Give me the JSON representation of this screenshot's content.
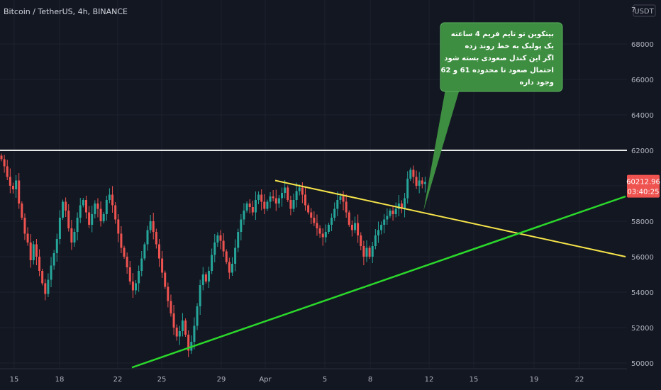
{
  "chart_data": {
    "type": "candlestick",
    "title": "Bitcoin / TetherUS, 4h, BINANCE",
    "currency_label": "USDT",
    "price_axis_top_partial": "7",
    "y_ticks": [
      50000,
      52000,
      54000,
      56000,
      58000,
      60000,
      62000,
      64000,
      66000,
      68000
    ],
    "y_tick_labels": [
      "50000",
      "52000",
      "54000",
      "56000",
      "58000",
      "60000",
      "62000",
      "64000",
      "66000",
      "68000"
    ],
    "ylim": [
      49700,
      71000
    ],
    "x_tick_labels": [
      "15",
      "18",
      "22",
      "25",
      "29",
      "Apr",
      "5",
      "8",
      "12",
      "15",
      "19",
      "22"
    ],
    "last_price_label": "60212.96",
    "countdown_label": "03:40:25",
    "price_colors": {
      "up": "#26a69a",
      "down": "#ef5350"
    },
    "resistance_line": {
      "price": 62000,
      "color": "#e8e8e8"
    },
    "descending_trendline": {
      "from_price": 60300,
      "to_price": 56000,
      "color": "#f5e44a"
    },
    "ascending_trendline": {
      "from_price": 49750,
      "to_price": 59400,
      "color": "#2bd82b"
    },
    "closes": [
      61500,
      61100,
      60500,
      60000,
      59800,
      60300,
      59000,
      58200,
      57300,
      56800,
      55800,
      56700,
      56000,
      55200,
      54500,
      53900,
      54700,
      55500,
      56200,
      57000,
      58200,
      59100,
      58600,
      57600,
      56800,
      57400,
      58200,
      58900,
      59200,
      58500,
      57800,
      58400,
      59000,
      58700,
      58000,
      58400,
      59200,
      59500,
      58900,
      58100,
      57300,
      56500,
      56000,
      55400,
      54600,
      54100,
      54500,
      55200,
      55900,
      56700,
      57500,
      58000,
      57400,
      56700,
      55900,
      55100,
      54300,
      53500,
      52800,
      52000,
      51500,
      51800,
      52400,
      51600,
      50700,
      51200,
      52100,
      53200,
      54400,
      55000,
      54600,
      55200,
      56100,
      56800,
      57200,
      56900,
      56300,
      55700,
      55100,
      55600,
      56500,
      57400,
      58100,
      58600,
      59000,
      58800,
      58500,
      59200,
      59500,
      59100,
      58700,
      59100,
      59400,
      59300,
      59000,
      59300,
      59600,
      59900,
      59200,
      58700,
      59200,
      59700,
      59900,
      59500,
      58900,
      58500,
      58200,
      57900,
      57600,
      57300,
      57100,
      57400,
      57800,
      58200,
      58700,
      59200,
      59400,
      59100,
      58500,
      57800,
      57500,
      57900,
      57200,
      56600,
      56000,
      56500,
      56000,
      56600,
      57200,
      57500,
      57800,
      58100,
      58300,
      58600,
      58400,
      58700,
      59000,
      58700,
      59300,
      60400,
      60900,
      60500,
      60000,
      60300,
      60100,
      60213
    ],
    "annotation": {
      "color": "#3e8e41",
      "lines": [
        "بیتکوین تو تایم فریم 4 ساعته",
        "یک پولبک به خط روند زده",
        "اگر این کندل صعودی بسته شود",
        "احتمال صعود تا محدوده 61 و 62 هزار",
        "وجود داره"
      ]
    }
  }
}
